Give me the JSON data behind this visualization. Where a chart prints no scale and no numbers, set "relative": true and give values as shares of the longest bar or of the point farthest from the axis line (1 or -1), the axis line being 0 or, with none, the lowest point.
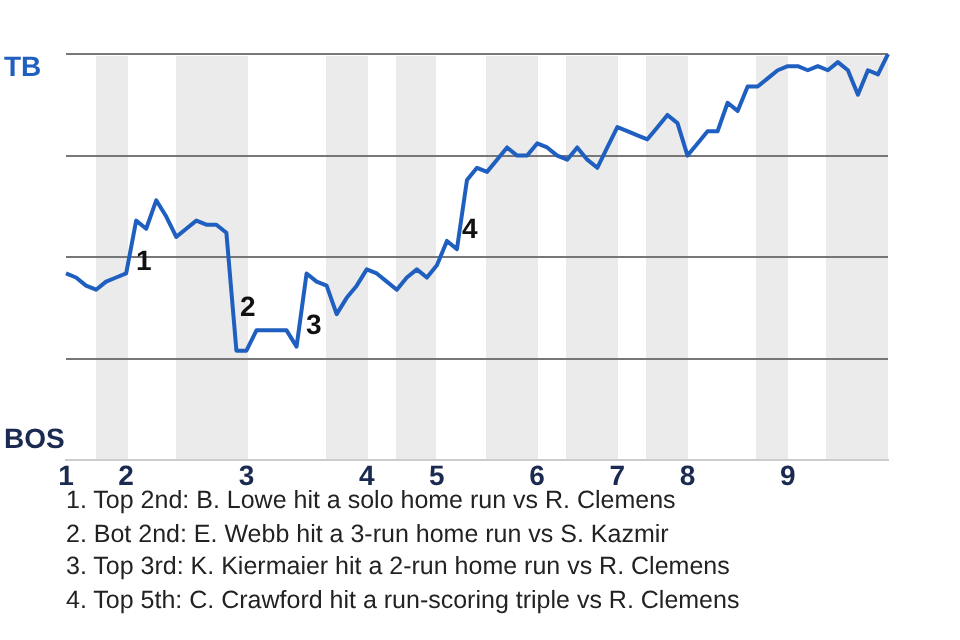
{
  "chart_data": {
    "type": "line",
    "relative": true,
    "categories": [
      "1",
      null,
      null,
      null,
      null,
      null,
      "2",
      null,
      null,
      null,
      null,
      null,
      null,
      null,
      null,
      null,
      null,
      null,
      "3",
      null,
      null,
      null,
      null,
      null,
      null,
      null,
      null,
      null,
      null,
      null,
      "4",
      null,
      null,
      null,
      null,
      null,
      null,
      "5",
      null,
      null,
      null,
      null,
      null,
      null,
      null,
      null,
      null,
      "6",
      null,
      null,
      null,
      null,
      null,
      null,
      null,
      "7",
      null,
      null,
      null,
      null,
      null,
      null,
      "8",
      null,
      null,
      null,
      null,
      null,
      null,
      null,
      null,
      null,
      "9",
      null,
      null,
      null,
      null,
      null,
      null,
      null,
      null,
      null,
      null
    ],
    "series": [
      {
        "color": "#1f5fbf",
        "values": [
          0.46,
          0.45,
          0.43,
          0.42,
          0.44,
          0.45,
          0.46,
          0.59,
          0.57,
          0.64,
          0.6,
          0.55,
          0.57,
          0.59,
          0.58,
          0.58,
          0.56,
          0.27,
          0.27,
          0.32,
          0.32,
          0.32,
          0.32,
          0.28,
          0.46,
          0.44,
          0.43,
          0.36,
          0.4,
          0.43,
          0.47,
          0.46,
          0.44,
          0.42,
          0.45,
          0.47,
          0.45,
          0.48,
          0.54,
          0.52,
          0.69,
          0.72,
          0.71,
          0.74,
          0.77,
          0.75,
          0.75,
          0.78,
          0.77,
          0.75,
          0.74,
          0.77,
          0.74,
          0.72,
          0.77,
          0.82,
          0.81,
          0.8,
          0.79,
          0.82,
          0.85,
          0.83,
          0.75,
          0.78,
          0.81,
          0.81,
          0.88,
          0.86,
          0.92,
          0.92,
          0.94,
          0.96,
          0.97,
          0.97,
          0.96,
          0.97,
          0.96,
          0.98,
          0.96,
          0.9,
          0.96,
          0.95,
          1.0
        ]
      }
    ],
    "grid": "y",
    "legend": false,
    "marker": "none",
    "line_style": "solid",
    "annotations": [
      "TB",
      "BOS",
      "1",
      "2",
      "3",
      "4",
      "1. Top 2nd: B. Lowe hit a solo home run vs R. Clemens",
      "2. Bot 2nd: E. Webb hit a 3-run home run vs S. Kazmir",
      "3. Top 3rd: K. Kiermaier hit a 2-run home run vs R. Clemens",
      "4. Top 5th: C. Crawford hit a run-scoring triple vs R. Clemens"
    ]
  }
}
